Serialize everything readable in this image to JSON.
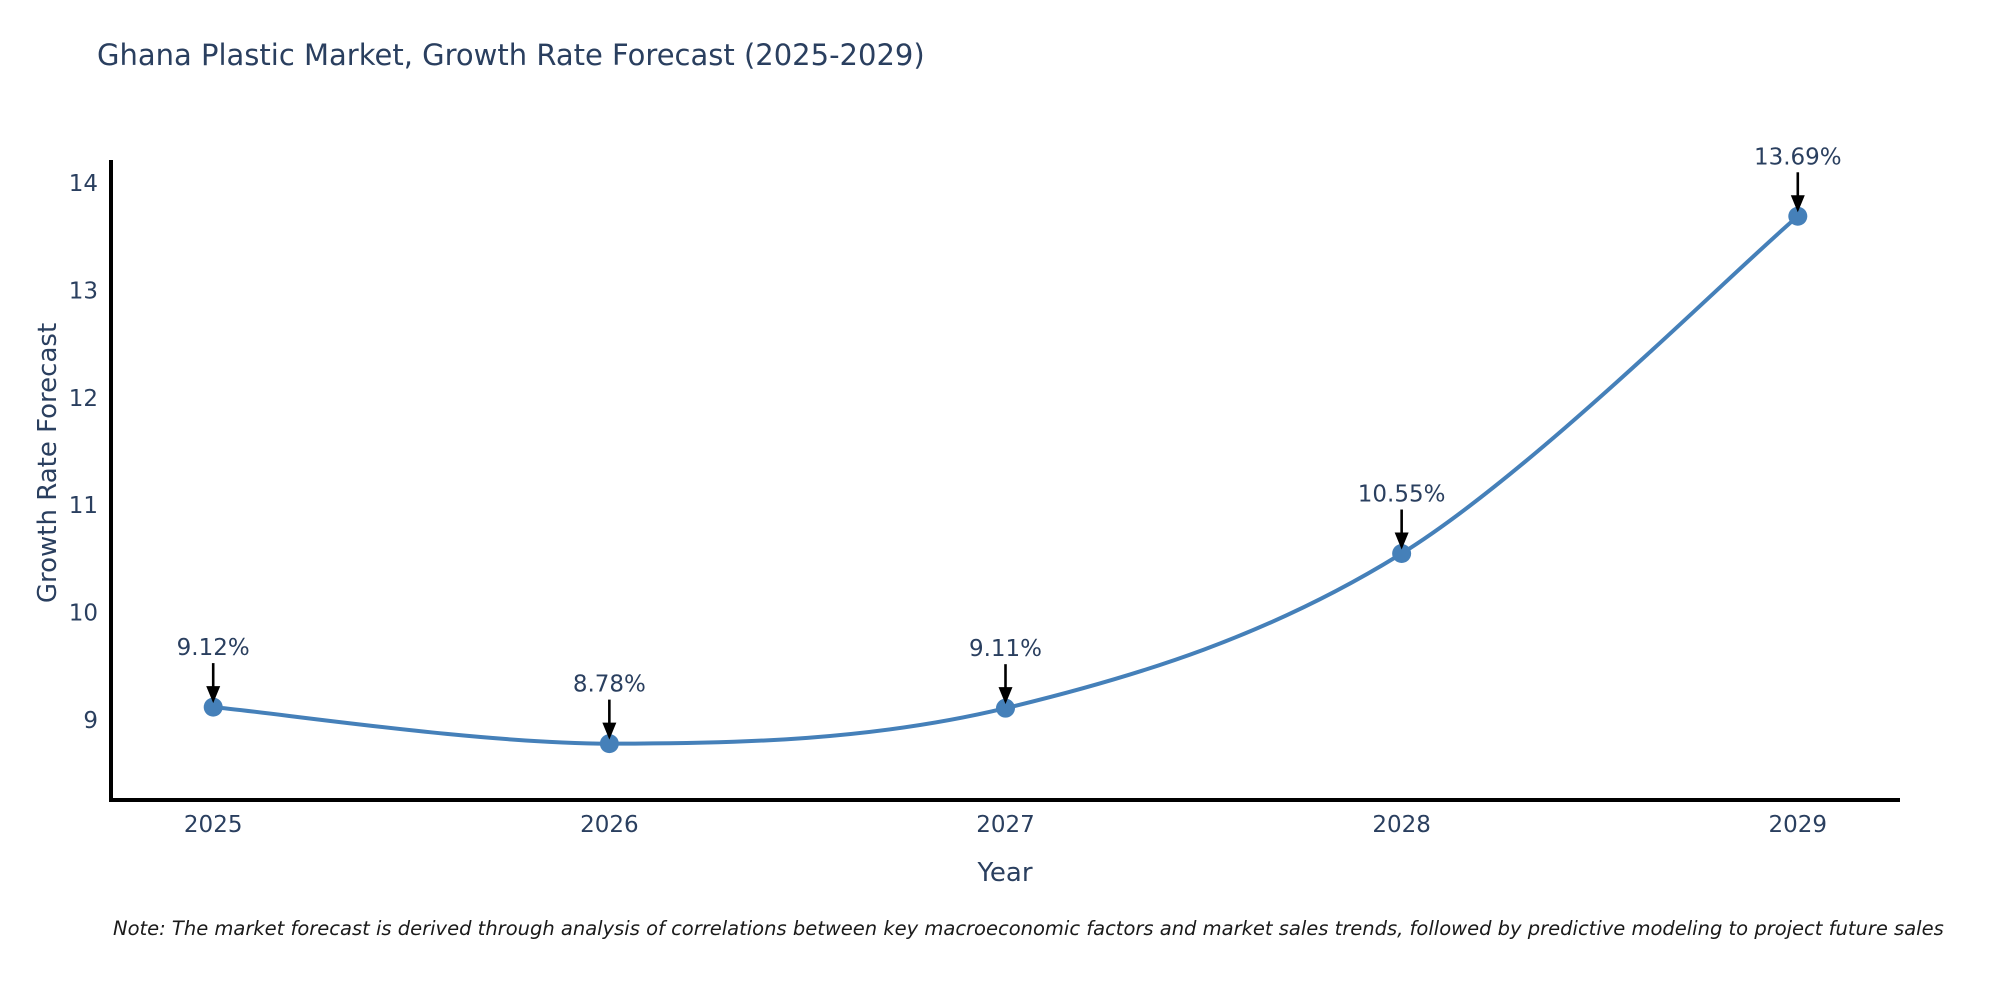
{
  "title": "Ghana Plastic Market, Growth Rate Forecast (2025-2029)",
  "chart_data": {
    "type": "line",
    "title": "Ghana Plastic Market, Growth Rate Forecast (2025-2029)",
    "x": [
      2025,
      2026,
      2027,
      2028,
      2029
    ],
    "series": [
      {
        "name": "Growth Rate Forecast",
        "values": [
          9.12,
          8.78,
          9.11,
          10.55,
          13.69
        ]
      }
    ],
    "point_labels": [
      "9.12%",
      "8.78%",
      "9.11%",
      "10.55%",
      "13.69%"
    ],
    "xlabel": "Year",
    "ylabel": "Growth Rate Forecast",
    "xticks": [
      "2025",
      "2026",
      "2027",
      "2028",
      "2029"
    ],
    "yticks": [
      9,
      10,
      11,
      12,
      13,
      14
    ],
    "xlim": [
      2024.742,
      2029.258
    ],
    "ylim": [
      8.255,
      14.214
    ],
    "grid": false,
    "legend_position": "none",
    "line_shape": "spline",
    "colors": {
      "line": "#4580b9",
      "marker": "#4580b9",
      "axis_line": "#000000",
      "tick_label": "#2a3f5f",
      "annotation_text": "#2a3f5f",
      "annotation_arrow": "#000000"
    }
  },
  "note": {
    "text": "Note: The market forecast is derived through analysis of correlations between key macroeconomic factors and market sales trends, followed by predictive modeling to project future sales"
  }
}
